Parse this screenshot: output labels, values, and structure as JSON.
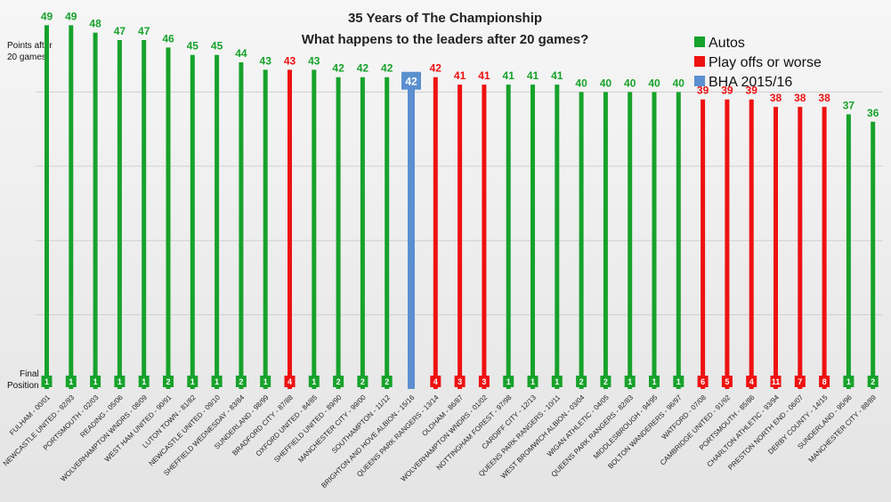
{
  "chart_data": {
    "type": "bar",
    "title": "35 Years of The Championship",
    "subtitle": "What happens to the leaders after 20 games?",
    "ylabel": "Points after 20 games",
    "position_label": "Final Position",
    "ylim": [
      0,
      50
    ],
    "grid": true,
    "legend_position": "top-right",
    "legend": [
      {
        "key": "auto",
        "label": "Autos",
        "color": "#17a22b"
      },
      {
        "key": "playoff",
        "label": "Play offs or worse",
        "color": "#ee1111"
      },
      {
        "key": "bha",
        "label": "BHA 2015/16",
        "color": "#5b8fd0"
      }
    ],
    "categories": [
      "FULHAM - 00/01",
      "NEWCASTLE UNITED - 92/93",
      "PORTSMOUTH - 02/03",
      "READING - 05/06",
      "WOLVERHAMPTON WNDRS - 08/09",
      "WEST HAM UNITED - 90/91",
      "LUTON TOWN - 81/82",
      "NEWCASTLE UNITED - 09/10",
      "SHEFFIELD WEDNESDAY - 83/84",
      "SUNDERLAND - 98/99",
      "BRADFORD CITY - 87/88",
      "OXFORD UNITED - 84/85",
      "SHEFFIELD UNITED - 89/90",
      "MANCHESTER CITY - 99/00",
      "SOUTHAMPTON - 11/12",
      "BRIGHTON AND HOVE ALBION - 15/16",
      "QUEENS PARK RANGERS - 13/14",
      "OLDHAM - 86/87",
      "WOLVERHAMPTON WNDRS - 01/02",
      "NOTTINGHAM FOREST - 97/98",
      "CARDIFF CITY - 12/13",
      "QUEENS PARK RANGERS - 10/11",
      "WEST BROMWICH ALBION - 03/04",
      "WIGAN ATHLETIC - 04/05",
      "QUEENS PARK RANGERS - 82/83",
      "MIDDLESBROUGH - 94/95",
      "BOLTON WANDERERS - 96/97",
      "WATFORD - 07/08",
      "CAMBRIDGE UNITED - 91/92",
      "PORTSMOUTH - 85/86",
      "CHARLTON ATHLETIC - 93/94",
      "PRESTON NORTH END - 06/07",
      "DERBY COUNTY - 14/15",
      "SUNDERLAND - 95/96",
      "MANCHESTER CITY - 88/89"
    ],
    "values": [
      49,
      49,
      48,
      47,
      47,
      46,
      45,
      45,
      44,
      43,
      43,
      43,
      42,
      42,
      42,
      42,
      42,
      41,
      41,
      41,
      41,
      41,
      40,
      40,
      40,
      40,
      40,
      39,
      39,
      39,
      38,
      38,
      38,
      37,
      36
    ],
    "final_positions": [
      "1",
      "1",
      "1",
      "1",
      "1",
      "2",
      "1",
      "1",
      "2",
      "1",
      "4",
      "1",
      "2",
      "2",
      "2",
      "",
      "4",
      "3",
      "3",
      "1",
      "1",
      "1",
      "2",
      "2",
      "1",
      "1",
      "1",
      "6",
      "5",
      "4",
      "11",
      "7",
      "8",
      "1",
      "2"
    ],
    "outcomes": [
      "auto",
      "auto",
      "auto",
      "auto",
      "auto",
      "auto",
      "auto",
      "auto",
      "auto",
      "auto",
      "playoff",
      "auto",
      "auto",
      "auto",
      "auto",
      "bha",
      "playoff",
      "playoff",
      "playoff",
      "auto",
      "auto",
      "auto",
      "auto",
      "auto",
      "auto",
      "auto",
      "auto",
      "playoff",
      "playoff",
      "playoff",
      "playoff",
      "playoff",
      "playoff",
      "auto",
      "auto"
    ]
  }
}
